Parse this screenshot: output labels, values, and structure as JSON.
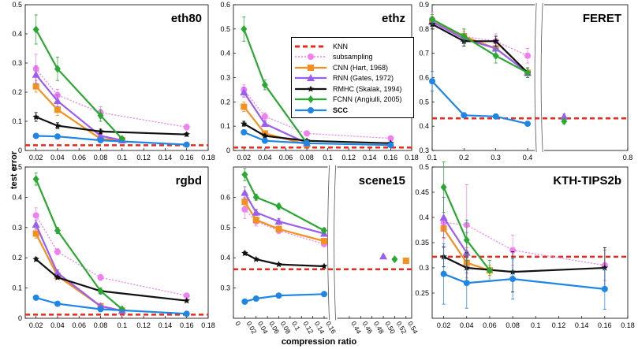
{
  "y_axis_label": "test error",
  "x_axis_label": "compression ratio",
  "legend": [
    {
      "key": "knn",
      "label": "KNN",
      "color": "#e8291c",
      "dashed": true,
      "marker": "none",
      "dotted": false
    },
    {
      "key": "sub",
      "label": "subsampling",
      "color": "#f27ff2",
      "dashed": false,
      "marker": "circle",
      "dotted": true
    },
    {
      "key": "cnn",
      "label": "CNN (Hart, 1968)",
      "color": "#f5901e",
      "dashed": false,
      "marker": "square",
      "dotted": false
    },
    {
      "key": "rnn",
      "label": "RNN (Gates, 1972)",
      "color": "#9a5ef0",
      "dashed": false,
      "marker": "triangle",
      "dotted": false
    },
    {
      "key": "rmhc",
      "label": "RMHC (Skalak, 1994)",
      "color": "#111111",
      "dashed": false,
      "marker": "star",
      "dotted": false
    },
    {
      "key": "fcnn",
      "label": "FCNN (Angiulli, 2005)",
      "color": "#2aa832",
      "dashed": false,
      "marker": "diamond",
      "dotted": false
    },
    {
      "key": "scc",
      "label": "SCC",
      "color": "#1f86e6",
      "dashed": false,
      "marker": "circle",
      "dotted": false
    }
  ],
  "chart_data": [
    {
      "type": "line",
      "title": "eth80",
      "xlim": [
        0.01,
        0.18
      ],
      "ylim": [
        0,
        0.5
      ],
      "xticks": [
        "0.02",
        "0.04",
        "0.06",
        "0.08",
        "0.1",
        "0.12",
        "0.14",
        "0.16",
        "0.18"
      ],
      "xtick_values": [
        0.02,
        0.04,
        0.06,
        0.08,
        0.1,
        0.12,
        0.14,
        0.16,
        0.18
      ],
      "yticks": [
        "0",
        "0.1",
        "0.2",
        "0.3",
        "0.4",
        "0.5"
      ],
      "ytick_values": [
        0,
        0.1,
        0.2,
        0.3,
        0.4,
        0.5
      ],
      "knn": 0.018,
      "series": [
        {
          "key": "sub",
          "x": [
            0.02,
            0.04,
            0.08,
            0.16
          ],
          "y": [
            0.28,
            0.19,
            0.13,
            0.08
          ],
          "err": [
            0.05,
            0.02,
            0.02,
            0.01
          ]
        },
        {
          "key": "cnn",
          "x": [
            0.02,
            0.04,
            0.08,
            0.1
          ],
          "y": [
            0.22,
            0.14,
            0.04,
            0.035
          ],
          "err": [
            0.02,
            0.02,
            0.01,
            0.005
          ]
        },
        {
          "key": "rnn",
          "x": [
            0.02,
            0.04,
            0.08,
            0.1
          ],
          "y": [
            0.26,
            0.17,
            0.05,
            0.035
          ],
          "err": [
            0.03,
            0.02,
            0.01,
            0.005
          ]
        },
        {
          "key": "rmhc",
          "x": [
            0.02,
            0.04,
            0.08,
            0.16
          ],
          "y": [
            0.115,
            0.085,
            0.065,
            0.055
          ],
          "err": [
            0.015,
            0.01,
            0.008,
            0.006
          ]
        },
        {
          "key": "fcnn",
          "x": [
            0.02,
            0.04,
            0.08,
            0.1
          ],
          "y": [
            0.415,
            0.28,
            0.12,
            0.04
          ],
          "err": [
            0.05,
            0.04,
            0.02,
            0.005
          ]
        },
        {
          "key": "scc",
          "x": [
            0.02,
            0.04,
            0.08,
            0.16
          ],
          "y": [
            0.05,
            0.048,
            0.035,
            0.02
          ],
          "err": [
            0.008,
            0.006,
            0.005,
            0.003
          ]
        }
      ]
    },
    {
      "type": "line",
      "title": "ethz",
      "xlim": [
        0.01,
        0.18
      ],
      "ylim": [
        0,
        0.6
      ],
      "xticks": [
        "0.02",
        "0.04",
        "0.06",
        "0.08",
        "0.1",
        "0.12",
        "0.14",
        "0.16",
        "0.18"
      ],
      "xtick_values": [
        0.02,
        0.04,
        0.06,
        0.08,
        0.1,
        0.12,
        0.14,
        0.16,
        0.18
      ],
      "yticks": [
        "0",
        "0.1",
        "0.2",
        "0.3",
        "0.4",
        "0.5",
        "0.6"
      ],
      "ytick_values": [
        0,
        0.1,
        0.2,
        0.3,
        0.4,
        0.5,
        0.6
      ],
      "knn": 0.012,
      "series": [
        {
          "key": "sub",
          "x": [
            0.02,
            0.04,
            0.08,
            0.16
          ],
          "y": [
            0.25,
            0.14,
            0.07,
            0.05
          ],
          "err": [
            0.02,
            0.015,
            0.01,
            0.008
          ]
        },
        {
          "key": "cnn",
          "x": [
            0.02,
            0.04,
            0.08
          ],
          "y": [
            0.18,
            0.07,
            0.025
          ],
          "err": [
            0.02,
            0.01,
            0.005
          ]
        },
        {
          "key": "rnn",
          "x": [
            0.02,
            0.04,
            0.08
          ],
          "y": [
            0.24,
            0.11,
            0.03
          ],
          "err": [
            0.02,
            0.01,
            0.005
          ]
        },
        {
          "key": "rmhc",
          "x": [
            0.02,
            0.04,
            0.08,
            0.16
          ],
          "y": [
            0.11,
            0.06,
            0.04,
            0.03
          ],
          "err": [
            0.01,
            0.008,
            0.006,
            0.005
          ]
        },
        {
          "key": "fcnn",
          "x": [
            0.02,
            0.04,
            0.08
          ],
          "y": [
            0.5,
            0.27,
            0.03
          ],
          "err": [
            0.05,
            0.02,
            0.005
          ]
        },
        {
          "key": "scc",
          "x": [
            0.02,
            0.04,
            0.08,
            0.16
          ],
          "y": [
            0.075,
            0.04,
            0.03,
            0.022
          ],
          "err": [
            0.006,
            0.005,
            0.004,
            0.003
          ]
        }
      ]
    },
    {
      "type": "line",
      "title": "FERET",
      "xlim": [
        0.1,
        0.8
      ],
      "ylim": [
        0.3,
        0.9
      ],
      "broken_x": [
        0.42,
        0.54
      ],
      "xticks": [
        "0.1",
        "0.2",
        "0.3",
        "0.4",
        "0.8"
      ],
      "xtick_values": [
        0.1,
        0.2,
        0.3,
        0.4,
        0.8
      ],
      "yticks": [
        "0.3",
        "0.4",
        "0.5",
        "0.6",
        "0.7",
        "0.8",
        "0.9"
      ],
      "ytick_values": [
        0.3,
        0.4,
        0.5,
        0.6,
        0.7,
        0.8,
        0.9
      ],
      "knn": 0.432,
      "series": [
        {
          "key": "sub",
          "x": [
            0.1,
            0.2,
            0.3,
            0.4
          ],
          "y": [
            0.84,
            0.77,
            0.75,
            0.69
          ],
          "err": [
            0.03,
            0.03,
            0.03,
            0.03
          ]
        },
        {
          "key": "cnn",
          "x": [
            0.1,
            0.2,
            0.3,
            0.4
          ],
          "y": [
            0.83,
            0.77,
            0.72,
            0.62
          ],
          "err": [
            0.02,
            0.02,
            0.03,
            0.02
          ]
        },
        {
          "key": "rnn",
          "x": [
            0.1,
            0.2,
            0.3,
            0.4,
            0.6
          ],
          "y": [
            0.83,
            0.76,
            0.72,
            0.62,
            0.44
          ],
          "err": [
            0.02,
            0.02,
            0.03,
            0.02,
            0.01
          ]
        },
        {
          "key": "rmhc",
          "x": [
            0.1,
            0.2,
            0.3,
            0.4
          ],
          "y": [
            0.82,
            0.75,
            0.75,
            0.62
          ],
          "err": [
            0.02,
            0.02,
            0.02,
            0.02
          ]
        },
        {
          "key": "fcnn",
          "x": [
            0.1,
            0.2,
            0.3,
            0.4,
            0.6
          ],
          "y": [
            0.84,
            0.77,
            0.69,
            0.62,
            0.42
          ],
          "err": [
            0.02,
            0.03,
            0.03,
            0.02,
            0.01
          ]
        },
        {
          "key": "scc",
          "x": [
            0.1,
            0.2,
            0.3,
            0.4
          ],
          "y": [
            0.585,
            0.445,
            0.44,
            0.41
          ],
          "err": [
            0.04,
            0.01,
            0.01,
            0.005
          ]
        }
      ]
    },
    {
      "type": "line",
      "title": "rgbd",
      "xlim": [
        0.01,
        0.18
      ],
      "ylim": [
        0,
        0.5
      ],
      "xticks": [
        "0.02",
        "0.04",
        "0.06",
        "0.08",
        "0.1",
        "0.12",
        "0.14",
        "0.16",
        "0.18"
      ],
      "xtick_values": [
        0.02,
        0.04,
        0.06,
        0.08,
        0.1,
        0.12,
        0.14,
        0.16,
        0.18
      ],
      "yticks": [
        "0",
        "0.1",
        "0.2",
        "0.3",
        "0.4",
        "0.5"
      ],
      "ytick_values": [
        0,
        0.1,
        0.2,
        0.3,
        0.4,
        0.5
      ],
      "knn": 0.012,
      "series": [
        {
          "key": "sub",
          "x": [
            0.02,
            0.04,
            0.08,
            0.16
          ],
          "y": [
            0.34,
            0.22,
            0.135,
            0.075
          ],
          "err": [
            0.025,
            0.01,
            0.01,
            0.006
          ]
        },
        {
          "key": "cnn",
          "x": [
            0.02,
            0.04,
            0.08,
            0.1
          ],
          "y": [
            0.28,
            0.14,
            0.04,
            0.025
          ],
          "err": [
            0.015,
            0.01,
            0.005,
            0.004
          ]
        },
        {
          "key": "rnn",
          "x": [
            0.02,
            0.04,
            0.08,
            0.1
          ],
          "y": [
            0.31,
            0.15,
            0.04,
            0.025
          ],
          "err": [
            0.015,
            0.01,
            0.005,
            0.004
          ]
        },
        {
          "key": "rmhc",
          "x": [
            0.02,
            0.04,
            0.08,
            0.16
          ],
          "y": [
            0.195,
            0.135,
            0.09,
            0.058
          ],
          "err": [
            0.006,
            0.005,
            0.004,
            0.004
          ]
        },
        {
          "key": "fcnn",
          "x": [
            0.02,
            0.04,
            0.08,
            0.1
          ],
          "y": [
            0.46,
            0.29,
            0.09,
            0.03
          ],
          "err": [
            0.02,
            0.01,
            0.01,
            0.004
          ]
        },
        {
          "key": "scc",
          "x": [
            0.02,
            0.04,
            0.08,
            0.16
          ],
          "y": [
            0.068,
            0.048,
            0.03,
            0.015
          ],
          "err": [
            0.006,
            0.004,
            0.003,
            0.002
          ]
        }
      ]
    },
    {
      "type": "line",
      "title": "scene15",
      "xlim": [
        0.0,
        0.55
      ],
      "ylim": [
        0.2,
        0.7
      ],
      "broken_x": [
        0.165,
        0.42
      ],
      "xticks": [
        "0",
        "0.02",
        "0.04",
        "0.06",
        "0.08",
        "0.1",
        "0.12",
        "0.14",
        "0.16",
        "0.44",
        "0.46",
        "0.48",
        "0.50",
        "0.52",
        "0.54"
      ],
      "xtick_values": [
        0,
        0.02,
        0.04,
        0.06,
        0.08,
        0.1,
        0.12,
        0.14,
        0.16,
        0.44,
        0.46,
        0.48,
        0.5,
        0.52,
        0.54
      ],
      "yticks": [
        "0.3",
        "0.4",
        "0.5",
        "0.6"
      ],
      "ytick_values": [
        0.3,
        0.4,
        0.5,
        0.6
      ],
      "knn": 0.362,
      "series": [
        {
          "key": "sub",
          "x": [
            0.02,
            0.04,
            0.08,
            0.16
          ],
          "y": [
            0.56,
            0.52,
            0.49,
            0.445
          ],
          "err": [
            0.03,
            0.015,
            0.01,
            0.008
          ]
        },
        {
          "key": "cnn",
          "x": [
            0.02,
            0.04,
            0.08,
            0.16,
            0.54
          ],
          "y": [
            0.585,
            0.525,
            0.495,
            0.455,
            0.39
          ],
          "err": [
            0.015,
            0.01,
            0.01,
            0.008,
            0.004
          ]
        },
        {
          "key": "rnn",
          "x": [
            0.02,
            0.04,
            0.08,
            0.16,
            0.5
          ],
          "y": [
            0.615,
            0.55,
            0.52,
            0.48,
            0.405
          ],
          "err": [
            0.02,
            0.01,
            0.01,
            0.008,
            0.004
          ]
        },
        {
          "key": "rmhc",
          "x": [
            0.02,
            0.04,
            0.08,
            0.16
          ],
          "y": [
            0.415,
            0.395,
            0.378,
            0.372
          ],
          "err": [
            0.006,
            0.004,
            0.004,
            0.004
          ]
        },
        {
          "key": "fcnn",
          "x": [
            0.02,
            0.04,
            0.08,
            0.16,
            0.52
          ],
          "y": [
            0.675,
            0.6,
            0.57,
            0.49,
            0.395
          ],
          "err": [
            0.02,
            0.01,
            0.01,
            0.008,
            0.004
          ]
        },
        {
          "key": "scc",
          "x": [
            0.02,
            0.04,
            0.08,
            0.16
          ],
          "y": [
            0.255,
            0.265,
            0.275,
            0.28
          ],
          "err": [
            0.004,
            0.004,
            0.004,
            0.004
          ]
        }
      ]
    },
    {
      "type": "line",
      "title": "KTH-TIPS2b",
      "xlim": [
        0.01,
        0.18
      ],
      "ylim": [
        0.2,
        0.5
      ],
      "xticks": [
        "0.02",
        "0.04",
        "0.06",
        "0.08",
        "0.1",
        "0.12",
        "0.14",
        "0.16",
        "0.18"
      ],
      "xtick_values": [
        0.02,
        0.04,
        0.06,
        0.08,
        0.1,
        0.12,
        0.14,
        0.16,
        0.18
      ],
      "yticks": [
        "0.25",
        "0.3",
        "0.35",
        "0.4",
        "0.45",
        "0.5"
      ],
      "ytick_values": [
        0.25,
        0.3,
        0.35,
        0.4,
        0.45,
        0.5
      ],
      "knn": 0.322,
      "series": [
        {
          "key": "sub",
          "x": [
            0.02,
            0.04,
            0.08,
            0.16
          ],
          "y": [
            0.39,
            0.385,
            0.335,
            0.305
          ],
          "err": [
            0.05,
            0.08,
            0.03,
            0.03
          ]
        },
        {
          "key": "cnn",
          "x": [
            0.02,
            0.04,
            0.06
          ],
          "y": [
            0.378,
            0.31,
            0.295
          ],
          "err": [
            0.02,
            0.03,
            0.01
          ]
        },
        {
          "key": "rnn",
          "x": [
            0.02,
            0.04
          ],
          "y": [
            0.4,
            0.33
          ],
          "err": [
            0.04,
            0.04
          ]
        },
        {
          "key": "rmhc",
          "x": [
            0.02,
            0.04,
            0.08,
            0.16
          ],
          "y": [
            0.322,
            0.3,
            0.292,
            0.3
          ],
          "err": [
            0.02,
            0.03,
            0.04,
            0.04
          ]
        },
        {
          "key": "fcnn",
          "x": [
            0.02,
            0.04,
            0.06
          ],
          "y": [
            0.46,
            0.355,
            0.295
          ],
          "err": [
            0.05,
            0.04,
            0.02
          ]
        },
        {
          "key": "scc",
          "x": [
            0.02,
            0.04,
            0.08,
            0.16
          ],
          "y": [
            0.288,
            0.27,
            0.278,
            0.258
          ],
          "err": [
            0.06,
            0.05,
            0.04,
            0.04
          ]
        }
      ]
    }
  ]
}
